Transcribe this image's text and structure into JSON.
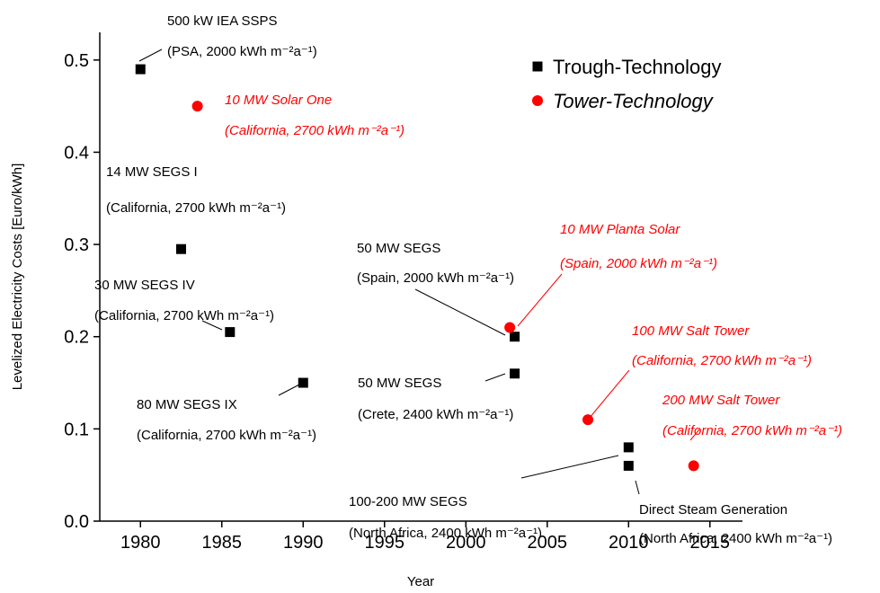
{
  "chart_data": {
    "type": "scatter",
    "x_label": "Year",
    "y_label": "Levelized Electricity Costs [Euro/kWh]",
    "xlim": [
      1977.5,
      2017
    ],
    "xticks": [
      1980,
      1985,
      1990,
      1995,
      2000,
      2005,
      2010,
      2015
    ],
    "ylim": [
      0,
      0.53
    ],
    "yticks": [
      {
        "value": 0,
        "label": "0.0"
      },
      0.1,
      0.2,
      0.3,
      0.4,
      0.5
    ],
    "legend": "top-right",
    "series": [
      {
        "name": "Trough-Technology",
        "color": "#000000",
        "marker": "square",
        "x": [
          1980,
          1982.5,
          1985.5,
          1990,
          2003,
          2003,
          2010,
          2010
        ],
        "values": [
          0.49,
          0.295,
          0.205,
          0.15,
          0.2,
          0.16,
          0.08,
          0.06
        ]
      },
      {
        "name": "Tower-Technology",
        "color": "#ff0000",
        "marker": "circle",
        "italic": true,
        "x": [
          1983.5,
          2002.7,
          2007.5,
          2014
        ],
        "values": [
          0.45,
          0.21,
          0.11,
          0.06
        ]
      }
    ],
    "annotations": [
      {
        "lines": [
          "500 kW IEA SSPS",
          "(PSA, 2000 kWh m⁻²a⁻¹)"
        ],
        "color": "#000000"
      },
      {
        "lines": [
          "10 MW Solar One",
          "(California, 2700 kWh m⁻²a⁻¹)"
        ],
        "color": "#ff0000",
        "italic": true
      },
      {
        "lines": [
          "14 MW SEGS I",
          "(California, 2700 kWh m⁻²a⁻¹)"
        ],
        "color": "#000000"
      },
      {
        "lines": [
          "30 MW SEGS IV",
          "(California, 2700 kWh m⁻²a⁻¹)"
        ],
        "color": "#000000"
      },
      {
        "lines": [
          "80 MW SEGS IX",
          "(California, 2700 kWh m⁻²a⁻¹)"
        ],
        "color": "#000000"
      },
      {
        "lines": [
          "50 MW SEGS",
          "(Spain, 2000 kWh m⁻²a⁻¹)"
        ],
        "color": "#000000"
      },
      {
        "lines": [
          "10 MW Planta Solar",
          "(Spain, 2000 kWh m⁻²a⁻¹)"
        ],
        "color": "#ff0000",
        "italic": true
      },
      {
        "lines": [
          "50 MW SEGS",
          "(Crete, 2400 kWh m⁻²a⁻¹)"
        ],
        "color": "#000000"
      },
      {
        "lines": [
          "100 MW Salt Tower",
          "(California, 2700 kWh m⁻²a⁻¹)"
        ],
        "color": "#ff0000",
        "italic": true
      },
      {
        "lines": [
          "200 MW Salt Tower",
          "(California, 2700 kWh m⁻²a⁻¹)"
        ],
        "color": "#ff0000",
        "italic": true
      },
      {
        "lines": [
          "100-200 MW SEGS",
          "(North Africa, 2400 kWh m⁻²a⁻¹)"
        ],
        "color": "#000000"
      },
      {
        "lines": [
          "Direct Steam Generation",
          "(North Africa, 2400 kWh m⁻²a⁻¹)"
        ],
        "color": "#000000"
      }
    ]
  }
}
